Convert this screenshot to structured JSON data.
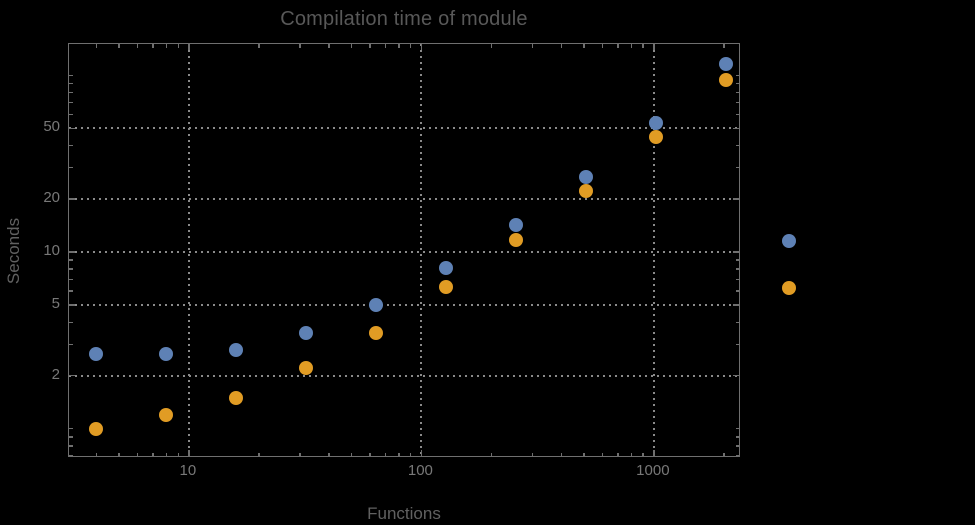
{
  "chart_data": {
    "type": "scatter",
    "title": "Compilation time of module",
    "xlabel": "Functions",
    "ylabel": "Seconds",
    "x_scale": "log",
    "y_scale": "log",
    "xlim": [
      3.05,
      2370
    ],
    "ylim": [
      0.683,
      150.3
    ],
    "x": [
      4,
      8,
      16,
      32,
      64,
      128,
      256,
      512,
      1024,
      2048
    ],
    "series": [
      {
        "name": "series-1-blue",
        "color": "#5e81b5",
        "values": [
          2.65,
          2.65,
          2.8,
          3.5,
          5.0,
          8.1,
          14.2,
          26.5,
          54,
          116
        ]
      },
      {
        "name": "series-2-orange",
        "color": "#e19c24",
        "values": [
          1.0,
          1.2,
          1.5,
          2.2,
          3.5,
          6.3,
          11.7,
          22,
          45,
          94
        ]
      }
    ],
    "x_axis": {
      "major_ticks": [
        10,
        100,
        1000
      ],
      "tick_labels": [
        "10",
        "100",
        "1000"
      ]
    },
    "y_axis": {
      "major_ticks": [
        2,
        5,
        10,
        20,
        50
      ],
      "tick_labels": [
        "2",
        "5",
        "10",
        "20",
        "50"
      ]
    },
    "grid": {
      "x_values": [
        10,
        100,
        1000
      ],
      "y_values": [
        2,
        5,
        10,
        20,
        50
      ],
      "style": "dotted",
      "color": "#8a8a8a"
    },
    "legend": {
      "position": "right-outside",
      "entries": [
        {
          "marker_color": "#5e81b5",
          "label": ""
        },
        {
          "marker_color": "#e19c24",
          "label": ""
        }
      ]
    },
    "colors": {
      "background": "#000000",
      "frame": "#6f6f6f",
      "grid": "#8a8a8a",
      "title_text": "#585858",
      "axis_label_text": "#616161",
      "tick_label_text": "#787878"
    }
  }
}
